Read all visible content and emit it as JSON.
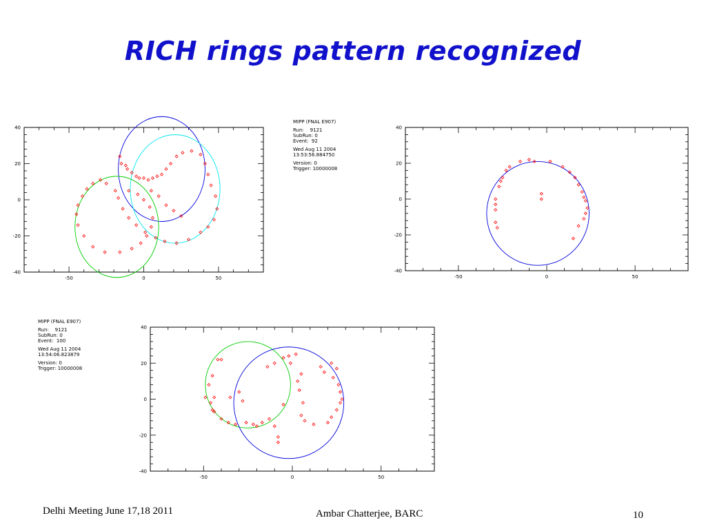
{
  "slide": {
    "title": "RICH rings pattern recognized",
    "footer_left": "Delhi Meeting June 17,18 2011",
    "footer_center": "Ambar Chatterjee, BARC",
    "page_number": "10"
  },
  "colors": {
    "title": "#1111cc",
    "hits": "#ff0000",
    "ring_blue": "#0000dd",
    "ring_cyan": "#00e5f0",
    "ring_green": "#00cc00"
  },
  "chart_data": [
    {
      "type": "scatter",
      "event_info": {
        "lines": [
          "MIPP (FNAL E907)",
          "",
          "Run:    9121",
          "SubRun: 0",
          "Event:  92",
          "",
          "Wed Aug 11 2004",
          "13:53:56.884750",
          "",
          "Version: 0",
          "Trigger: 10000008"
        ]
      },
      "xlim": [
        -80,
        80
      ],
      "ylim": [
        -40,
        40
      ],
      "xticks": [
        "-50",
        "0",
        "50"
      ],
      "yticks": [
        "40",
        "20",
        "0",
        "-20",
        "-40"
      ],
      "rings": [
        {
          "color": "ring_blue",
          "cx": 12,
          "cy": 17,
          "r": 29
        },
        {
          "color": "ring_cyan",
          "cx": 21,
          "cy": 6,
          "r": 30
        },
        {
          "color": "ring_green",
          "cx": -18,
          "cy": -15,
          "r": 28
        }
      ],
      "hits": [
        [
          -16,
          24
        ],
        [
          -15,
          20
        ],
        [
          -12,
          19
        ],
        [
          -11,
          17
        ],
        [
          -8,
          15
        ],
        [
          -5,
          13
        ],
        [
          -3,
          12
        ],
        [
          0,
          12
        ],
        [
          3,
          11
        ],
        [
          6,
          12
        ],
        [
          9,
          13
        ],
        [
          12,
          14
        ],
        [
          15,
          17
        ],
        [
          18,
          20
        ],
        [
          22,
          24
        ],
        [
          26,
          26
        ],
        [
          32,
          27
        ],
        [
          38,
          25
        ],
        [
          41,
          20
        ],
        [
          43,
          14
        ],
        [
          45,
          8
        ],
        [
          48,
          2
        ],
        [
          49,
          -5
        ],
        [
          47,
          -11
        ],
        [
          43,
          -15
        ],
        [
          38,
          -18
        ],
        [
          30,
          -22
        ],
        [
          22,
          -24
        ],
        [
          14,
          -23
        ],
        [
          8,
          -21
        ],
        [
          1,
          -18
        ],
        [
          -5,
          -14
        ],
        [
          -10,
          -10
        ],
        [
          -14,
          -5
        ],
        [
          -17,
          1
        ],
        [
          -19,
          5
        ],
        [
          -25,
          9
        ],
        [
          -29,
          11
        ],
        [
          -34,
          9
        ],
        [
          -38,
          6
        ],
        [
          -41,
          2
        ],
        [
          -44,
          -3
        ],
        [
          -45,
          -8
        ],
        [
          -44,
          -14
        ],
        [
          -40,
          -20
        ],
        [
          -34,
          -26
        ],
        [
          -26,
          -29
        ],
        [
          -16,
          -29
        ],
        [
          -8,
          -27
        ],
        [
          -2,
          -24
        ],
        [
          2,
          -20
        ],
        [
          5,
          -15
        ],
        [
          6,
          -10
        ],
        [
          4,
          -4
        ],
        [
          0,
          0
        ],
        [
          -4,
          3
        ],
        [
          -10,
          5
        ],
        [
          5,
          5
        ],
        [
          10,
          2
        ],
        [
          15,
          -3
        ],
        [
          20,
          -6
        ],
        [
          25,
          -9
        ]
      ]
    },
    {
      "type": "scatter",
      "xlim": [
        -80,
        80
      ],
      "ylim": [
        -40,
        40
      ],
      "xticks": [
        "-50",
        "0",
        "50"
      ],
      "yticks": [
        "40",
        "20",
        "0",
        "-20",
        "-40"
      ],
      "rings": [
        {
          "color": "ring_blue",
          "cx": -5,
          "cy": -8,
          "r": 29
        }
      ],
      "hits": [
        [
          -29,
          0
        ],
        [
          -29,
          -3
        ],
        [
          -29,
          -6
        ],
        [
          -29,
          -13
        ],
        [
          -28,
          -16
        ],
        [
          -27,
          7
        ],
        [
          -26,
          10
        ],
        [
          -25,
          12
        ],
        [
          -23,
          16
        ],
        [
          -21,
          18
        ],
        [
          -15,
          21
        ],
        [
          -10,
          22
        ],
        [
          -7,
          21
        ],
        [
          2,
          21
        ],
        [
          9,
          18
        ],
        [
          13,
          15
        ],
        [
          16,
          12
        ],
        [
          18,
          8
        ],
        [
          20,
          4
        ],
        [
          21,
          1
        ],
        [
          22,
          -1
        ],
        [
          23,
          -5
        ],
        [
          22,
          -8
        ],
        [
          21,
          -11
        ],
        [
          18,
          -15
        ],
        [
          15,
          -22
        ],
        [
          -3,
          3
        ],
        [
          -3,
          0
        ]
      ]
    },
    {
      "type": "scatter",
      "event_info": {
        "lines": [
          "MIPP (FNAL E907)",
          "",
          "Run:    9121",
          "SubRun: 0",
          "Event:  100",
          "",
          "Wed Aug 11 2004",
          "13:54:06.823879",
          "",
          "Version: 0",
          "Trigger: 10000008"
        ]
      },
      "xlim": [
        -80,
        80
      ],
      "ylim": [
        -40,
        40
      ],
      "xticks": [
        "-50",
        "0",
        "50"
      ],
      "yticks": [
        "40",
        "20",
        "0",
        "-20",
        "-40"
      ],
      "rings": [
        {
          "color": "ring_green",
          "cx": -25,
          "cy": 8,
          "r": 24
        },
        {
          "color": "ring_blue",
          "cx": -2,
          "cy": -2,
          "r": 31
        }
      ],
      "hits": [
        [
          -45,
          13
        ],
        [
          -42,
          22
        ],
        [
          -40,
          22
        ],
        [
          -47,
          8
        ],
        [
          -44,
          1
        ],
        [
          -46,
          -2
        ],
        [
          -45,
          -6
        ],
        [
          -44,
          -7
        ],
        [
          -40,
          -11
        ],
        [
          -36,
          -13
        ],
        [
          -32,
          -14
        ],
        [
          -26,
          -13
        ],
        [
          -22,
          -14
        ],
        [
          -20,
          -15
        ],
        [
          -17,
          -13
        ],
        [
          -13,
          -11
        ],
        [
          -10,
          -15
        ],
        [
          -8,
          -21
        ],
        [
          -8,
          -24
        ],
        [
          -14,
          18
        ],
        [
          -10,
          20
        ],
        [
          -5,
          23
        ],
        [
          -2,
          24
        ],
        [
          2,
          25
        ],
        [
          -1,
          20
        ],
        [
          5,
          14
        ],
        [
          3,
          10
        ],
        [
          4,
          5
        ],
        [
          6,
          -2
        ],
        [
          5,
          -9
        ],
        [
          7,
          -12
        ],
        [
          12,
          -14
        ],
        [
          20,
          -13
        ],
        [
          22,
          -10
        ],
        [
          25,
          -6
        ],
        [
          27,
          -2
        ],
        [
          28,
          0
        ],
        [
          27,
          4
        ],
        [
          26,
          8
        ],
        [
          23,
          12
        ],
        [
          18,
          15
        ],
        [
          16,
          18
        ],
        [
          22,
          20
        ],
        [
          25,
          17
        ],
        [
          -5,
          -3
        ],
        [
          -30,
          4
        ],
        [
          -28,
          -1
        ],
        [
          -35,
          1
        ],
        [
          -49,
          1
        ]
      ]
    }
  ]
}
